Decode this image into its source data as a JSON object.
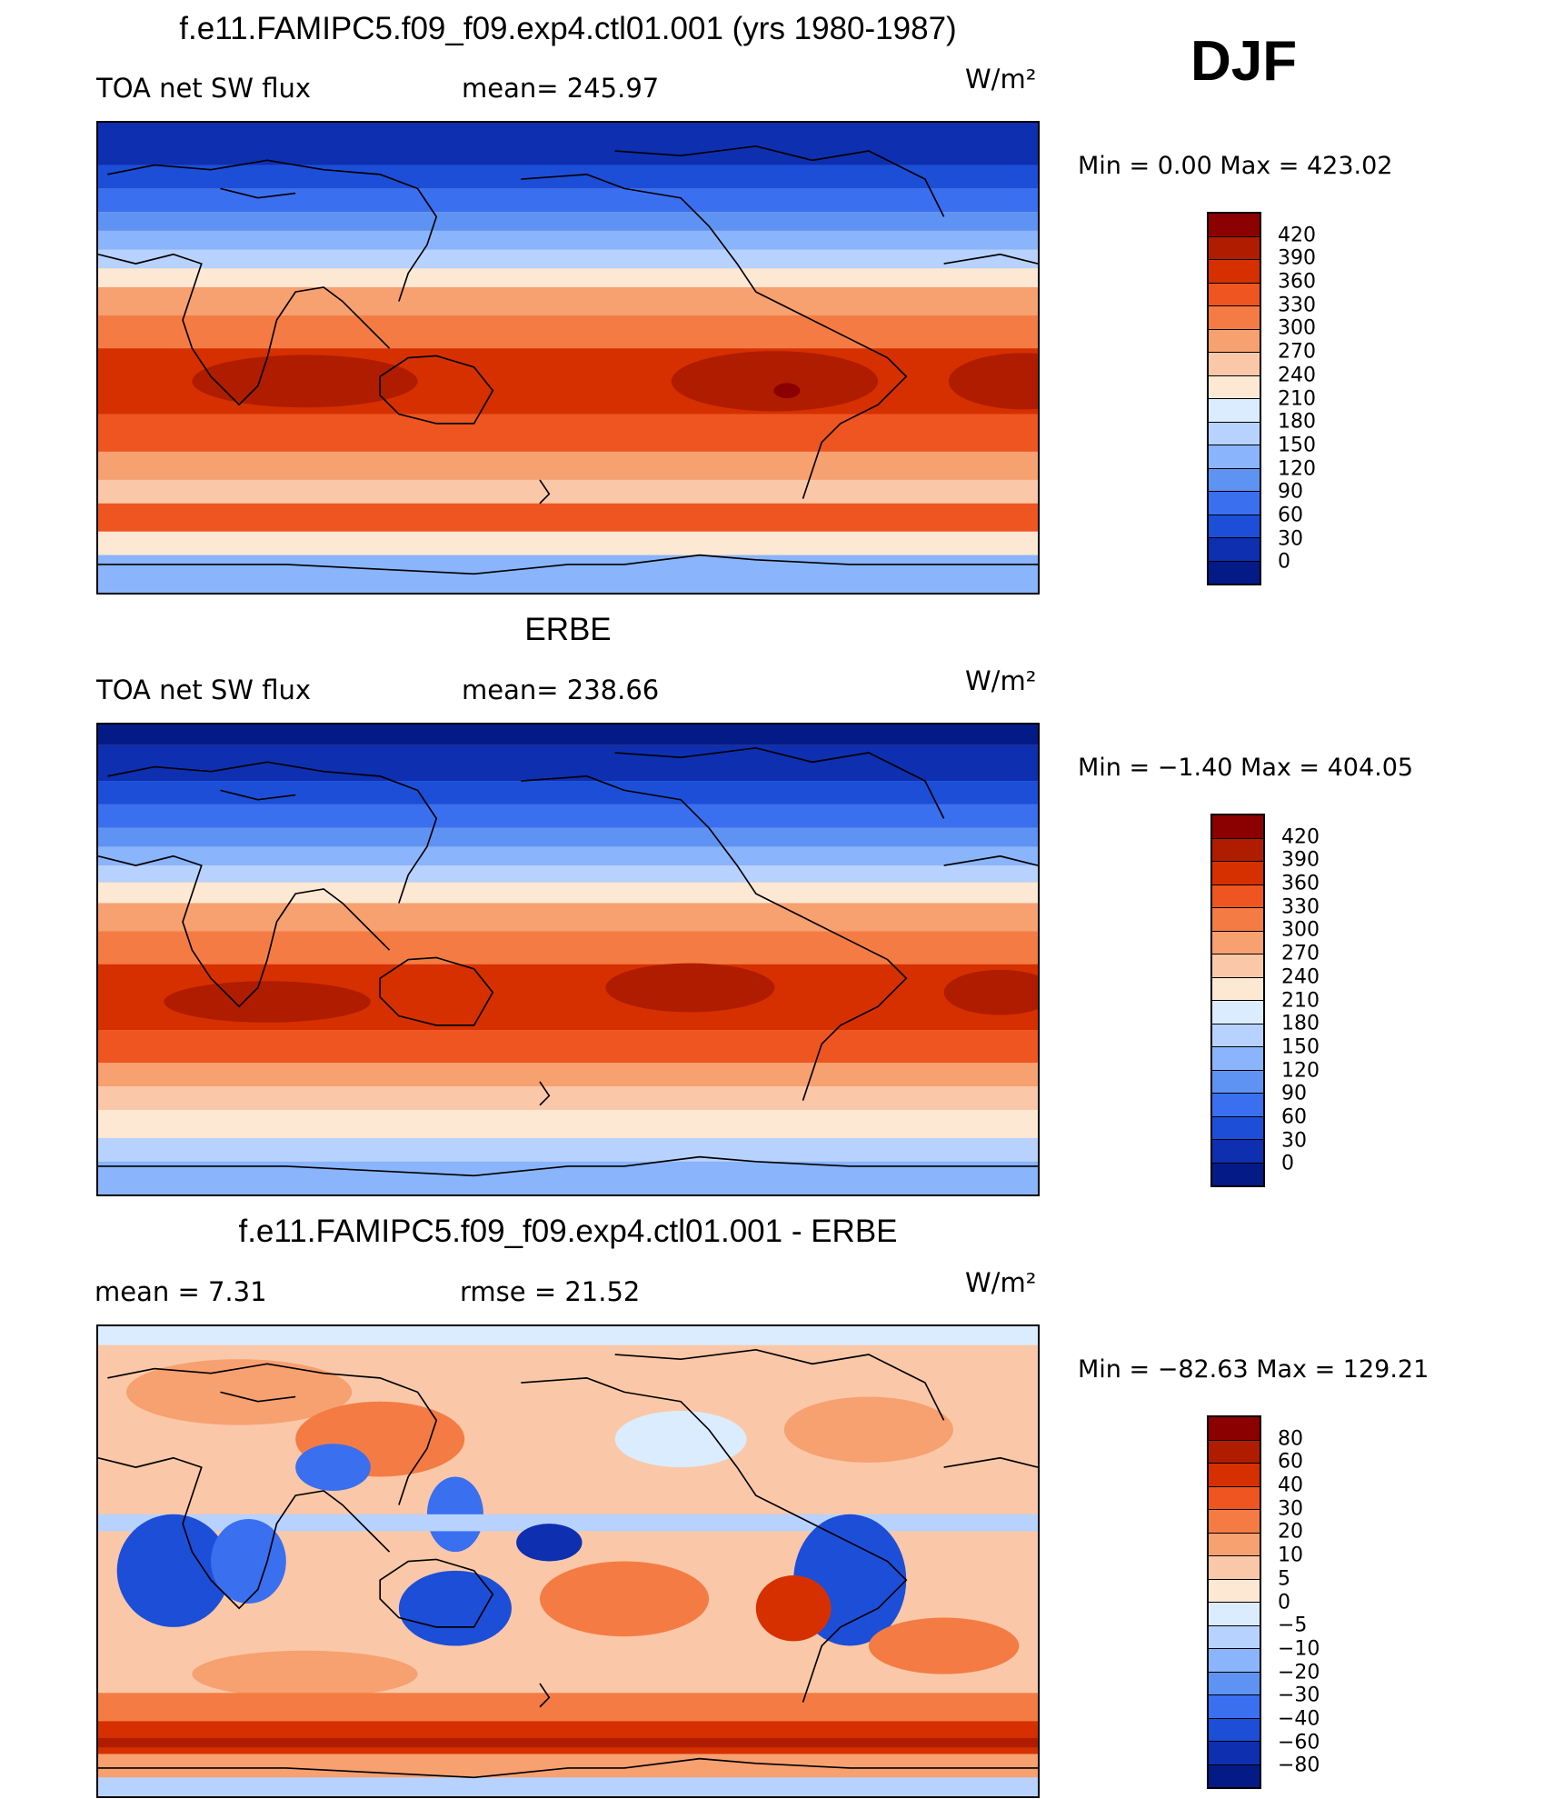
{
  "figure": {
    "season": "DJF"
  },
  "panels": [
    {
      "title": "f.e11.FAMIPC5.f09_f09.exp4.ctl01.001 (yrs 1980-1987)",
      "left_text": "TOA net SW flux",
      "center_text": "mean= 245.97",
      "units": "W/m²",
      "min_max": "Min =    0.00 Max = 423.02",
      "colorbar": {
        "labels": [
          "420",
          "390",
          "360",
          "330",
          "300",
          "270",
          "240",
          "210",
          "180",
          "150",
          "120",
          "90",
          "60",
          "30",
          "0"
        ],
        "colors": [
          "#8b0000",
          "#b01c00",
          "#d63000",
          "#ee5520",
          "#f47c44",
          "#f7a070",
          "#fac8a8",
          "#fde8d4",
          "#dcecff",
          "#b7d2ff",
          "#8ab4fb",
          "#5f93f3",
          "#3a6ff0",
          "#1c4ed8",
          "#0d2fb0",
          "#041a86"
        ]
      }
    },
    {
      "title": "ERBE",
      "left_text": "TOA net SW flux",
      "center_text": "mean= 238.66",
      "units": "W/m²",
      "min_max": "Min =  −1.40 Max = 404.05",
      "colorbar": {
        "labels": [
          "420",
          "390",
          "360",
          "330",
          "300",
          "270",
          "240",
          "210",
          "180",
          "150",
          "120",
          "90",
          "60",
          "30",
          "0"
        ],
        "colors": [
          "#8b0000",
          "#b01c00",
          "#d63000",
          "#ee5520",
          "#f47c44",
          "#f7a070",
          "#fac8a8",
          "#fde8d4",
          "#dcecff",
          "#b7d2ff",
          "#8ab4fb",
          "#5f93f3",
          "#3a6ff0",
          "#1c4ed8",
          "#0d2fb0",
          "#041a86"
        ]
      }
    },
    {
      "title": "f.e11.FAMIPC5.f09_f09.exp4.ctl01.001 - ERBE",
      "left_text": "mean =    7.31",
      "center_text": "rmse =   21.52",
      "units": "W/m²",
      "min_max": "Min = −82.63 Max = 129.21",
      "colorbar": {
        "labels": [
          "80",
          "60",
          "40",
          "30",
          "20",
          "10",
          "5",
          "0",
          "−5",
          "−10",
          "−20",
          "−30",
          "−40",
          "−60",
          "−80"
        ],
        "colors": [
          "#8b0000",
          "#b01c00",
          "#d63000",
          "#ee5520",
          "#f47c44",
          "#f7a070",
          "#fac8a8",
          "#fde8d4",
          "#dcecff",
          "#b7d2ff",
          "#8ab4fb",
          "#5f93f3",
          "#3a6ff0",
          "#1c4ed8",
          "#0d2fb0",
          "#041a86"
        ]
      }
    }
  ]
}
